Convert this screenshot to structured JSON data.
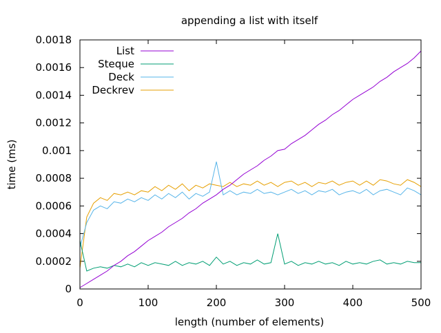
{
  "chart_data": {
    "type": "line",
    "title": "appending a list with itself",
    "xlabel": "length (number of elements)",
    "ylabel": "time (ms)",
    "xlim": [
      0,
      500
    ],
    "ylim": [
      0,
      0.0018
    ],
    "xticks": [
      0,
      100,
      200,
      300,
      400,
      500
    ],
    "xtick_labels": [
      "0",
      "100",
      "200",
      "300",
      "400",
      "500"
    ],
    "yticks": [
      0,
      0.0002,
      0.0004,
      0.0006,
      0.0008,
      0.001,
      0.0012,
      0.0014,
      0.0016,
      0.0018
    ],
    "ytick_labels": [
      "0",
      "0.0002",
      "0.0004",
      "0.0006",
      "0.0008",
      "0.001",
      "0.0012",
      "0.0014",
      "0.0016",
      "0.0018"
    ],
    "grid": false,
    "legend_position": "top-left",
    "x": [
      0,
      10,
      20,
      30,
      40,
      50,
      60,
      70,
      80,
      90,
      100,
      110,
      120,
      130,
      140,
      150,
      160,
      170,
      180,
      190,
      200,
      210,
      220,
      230,
      240,
      250,
      260,
      270,
      280,
      290,
      300,
      310,
      320,
      330,
      340,
      350,
      360,
      370,
      380,
      390,
      400,
      410,
      420,
      430,
      440,
      450,
      460,
      470,
      480,
      490,
      500
    ],
    "series": [
      {
        "name": "List",
        "color": "#9400d3",
        "values": [
          1e-05,
          4e-05,
          7e-05,
          0.0001,
          0.00013,
          0.00017,
          0.0002,
          0.00024,
          0.00027,
          0.00031,
          0.00035,
          0.00038,
          0.00041,
          0.00045,
          0.00048,
          0.00051,
          0.00055,
          0.00058,
          0.00062,
          0.00065,
          0.00068,
          0.00072,
          0.00075,
          0.00079,
          0.00083,
          0.00086,
          0.00089,
          0.00093,
          0.00096,
          0.001,
          0.00101,
          0.00105,
          0.00108,
          0.00111,
          0.00115,
          0.00119,
          0.00122,
          0.00126,
          0.00129,
          0.00133,
          0.00137,
          0.0014,
          0.00143,
          0.00146,
          0.0015,
          0.00153,
          0.00157,
          0.0016,
          0.00163,
          0.00167,
          0.00172
        ]
      },
      {
        "name": "Steque",
        "color": "#009e73",
        "values": [
          0.00035,
          0.00013,
          0.00015,
          0.00016,
          0.00015,
          0.00017,
          0.00016,
          0.00018,
          0.00016,
          0.00019,
          0.00017,
          0.00019,
          0.00018,
          0.00017,
          0.0002,
          0.00017,
          0.00019,
          0.00018,
          0.0002,
          0.00017,
          0.00023,
          0.00018,
          0.0002,
          0.00017,
          0.00019,
          0.00018,
          0.00021,
          0.00018,
          0.00019,
          0.0004,
          0.00018,
          0.0002,
          0.00017,
          0.00019,
          0.00018,
          0.0002,
          0.00018,
          0.00019,
          0.00017,
          0.0002,
          0.00018,
          0.00019,
          0.00018,
          0.0002,
          0.00021,
          0.00018,
          0.00019,
          0.00018,
          0.0002,
          0.00019,
          0.00019
        ]
      },
      {
        "name": "Deck",
        "color": "#56b4e9",
        "values": [
          0.0003,
          0.00048,
          0.00057,
          0.0006,
          0.00058,
          0.00063,
          0.00062,
          0.00065,
          0.00063,
          0.00066,
          0.00064,
          0.00068,
          0.00065,
          0.00069,
          0.00066,
          0.0007,
          0.00065,
          0.00069,
          0.00067,
          0.0007,
          0.00092,
          0.00068,
          0.00071,
          0.00068,
          0.0007,
          0.00069,
          0.00072,
          0.00069,
          0.0007,
          0.00068,
          0.0007,
          0.00072,
          0.00069,
          0.00071,
          0.00068,
          0.00071,
          0.0007,
          0.00072,
          0.00068,
          0.0007,
          0.00071,
          0.00069,
          0.00072,
          0.00068,
          0.00071,
          0.00072,
          0.0007,
          0.00068,
          0.00073,
          0.00071,
          0.00068
        ]
      },
      {
        "name": "Deckrev",
        "color": "#e69f00",
        "values": [
          0.00015,
          0.00052,
          0.00062,
          0.00066,
          0.00064,
          0.00069,
          0.00068,
          0.0007,
          0.00068,
          0.00071,
          0.0007,
          0.00074,
          0.00071,
          0.00075,
          0.00072,
          0.00076,
          0.00071,
          0.00075,
          0.00073,
          0.00076,
          0.00075,
          0.00074,
          0.00077,
          0.00074,
          0.00076,
          0.00075,
          0.00078,
          0.00075,
          0.00077,
          0.00074,
          0.00077,
          0.00078,
          0.00075,
          0.00077,
          0.00074,
          0.00077,
          0.00076,
          0.00078,
          0.00075,
          0.00077,
          0.00078,
          0.00075,
          0.00078,
          0.00075,
          0.00079,
          0.00078,
          0.00076,
          0.00075,
          0.00079,
          0.00077,
          0.00074
        ]
      }
    ]
  }
}
